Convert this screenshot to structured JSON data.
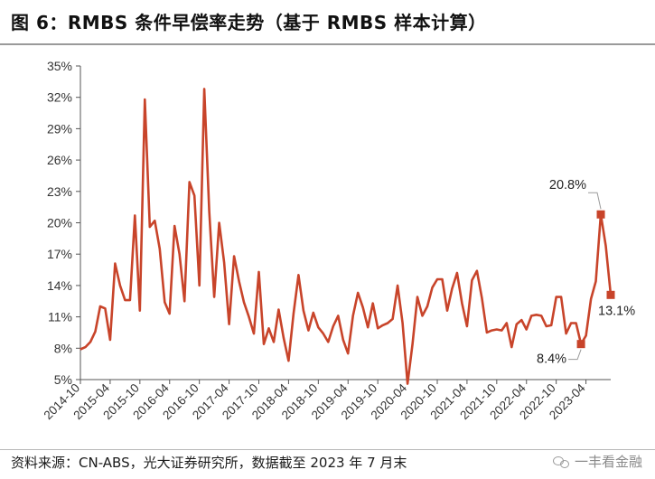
{
  "figure": {
    "title": "图 6：RMBS 条件早偿率走势（基于 RMBS 样本计算）",
    "source": "资料来源：CN-ABS，光大证券研究所，数据截至 2023 年 7 月末",
    "watermark": "一丰看金融",
    "watermark_icon": "wechat-icon"
  },
  "chart_data": {
    "type": "line",
    "title": "RMBS 条件早偿率走势（基于 RMBS 样本计算）",
    "xlabel": "",
    "ylabel": "",
    "ylim": [
      5,
      35
    ],
    "yticks": [
      "5%",
      "8%",
      "11%",
      "14%",
      "17%",
      "20%",
      "23%",
      "26%",
      "29%",
      "32%",
      "35%"
    ],
    "xticks": [
      "2014-10",
      "2015-04",
      "2015-10",
      "2016-04",
      "2016-10",
      "2017-04",
      "2017-10",
      "2018-04",
      "2018-10",
      "2019-04",
      "2019-10",
      "2020-04",
      "2020-10",
      "2021-04",
      "2021-10",
      "2022-04",
      "2022-10",
      "2023-04"
    ],
    "grid": false,
    "line_color": "#c8442a",
    "series": [
      {
        "values": [
          7.9,
          8.1,
          8.6,
          9.6,
          12.0,
          11.8,
          8.8,
          16.1,
          14.0,
          12.6,
          12.6,
          20.7,
          11.6,
          31.8,
          19.6,
          20.2,
          17.5,
          12.4,
          11.3,
          19.7,
          17.0,
          12.5,
          23.9,
          22.6,
          14.0,
          32.8,
          21.1,
          12.9,
          20.0,
          16.2,
          10.3,
          16.8,
          14.4,
          12.4,
          11.0,
          9.4,
          15.3,
          8.4,
          9.9,
          8.6,
          11.7,
          9.0,
          6.8,
          11.3,
          15.0,
          11.6,
          9.7,
          11.4,
          10.0,
          9.4,
          8.6,
          10.1,
          11.1,
          8.8,
          7.5,
          11.1,
          13.3,
          11.9,
          10.0,
          12.3,
          9.9,
          10.2,
          10.4,
          10.8,
          14.0,
          10.4,
          4.6,
          8.4,
          12.9,
          11.1,
          12.0,
          13.8,
          14.6,
          14.6,
          11.6,
          13.7,
          15.2,
          12.3,
          10.1,
          14.5,
          15.4,
          12.8,
          9.5,
          9.7,
          9.8,
          9.7,
          10.4,
          8.1,
          10.3,
          10.7,
          9.8,
          11.1,
          11.2,
          11.1,
          10.1,
          10.2,
          12.9,
          12.9,
          9.4,
          10.4,
          10.4,
          8.4,
          9.2,
          12.7,
          14.4,
          20.8,
          17.8,
          13.1
        ]
      }
    ],
    "annotations": [
      {
        "label": "20.8%",
        "value": 20.8,
        "point_index": 105
      },
      {
        "label": "8.4%",
        "value": 8.4,
        "point_index": 101
      },
      {
        "label": "13.1%",
        "value": 13.1,
        "point_index": 107
      }
    ]
  }
}
